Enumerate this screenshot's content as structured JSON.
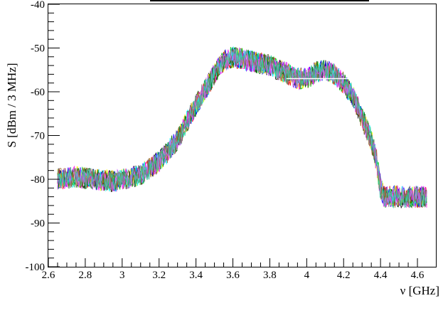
{
  "chart_data": {
    "type": "line",
    "title": "",
    "xlabel": "ν [GHz]",
    "ylabel": "S [dBm / 3 MHz]",
    "xlim": [
      2.6,
      4.7
    ],
    "ylim": [
      -100,
      -40
    ],
    "x_ticks": [
      2.6,
      2.8,
      3.0,
      3.2,
      3.4,
      3.6,
      3.8,
      4.0,
      4.2,
      4.4,
      4.6
    ],
    "x_tick_labels": [
      "2.6",
      "2.8",
      "3",
      "3.2",
      "3.4",
      "3.6",
      "3.8",
      "4",
      "4.2",
      "4.4",
      "4.6"
    ],
    "y_ticks": [
      -100,
      -90,
      -80,
      -70,
      -60,
      -50,
      -40
    ],
    "y_tick_labels": [
      "-100",
      "-90",
      "-80",
      "-70",
      "-60",
      "-50",
      "-40"
    ],
    "grid": false,
    "legend": "none",
    "n_traces": 12,
    "noise_amplitude_db": 2.5,
    "colors": [
      "#000000",
      "#ff0000",
      "#00cc00",
      "#0000ff",
      "#ffff00",
      "#ff00ff",
      "#00ffff",
      "#006600",
      "#808080",
      "#996633",
      "#cc66ff",
      "#33cc99"
    ],
    "envelope": {
      "x": [
        2.65,
        2.75,
        2.85,
        2.95,
        3.05,
        3.1,
        3.2,
        3.3,
        3.4,
        3.5,
        3.55,
        3.6,
        3.7,
        3.8,
        3.9,
        3.95,
        4.0,
        4.05,
        4.1,
        4.15,
        4.2,
        4.25,
        4.3,
        4.35,
        4.38,
        4.4,
        4.42,
        4.45,
        4.5,
        4.55,
        4.6,
        4.65
      ],
      "y": [
        -80,
        -79.5,
        -80,
        -80.5,
        -79.5,
        -79,
        -76,
        -71,
        -63,
        -56,
        -53,
        -52,
        -53,
        -54,
        -56,
        -57,
        -57,
        -55.5,
        -55,
        -56,
        -58,
        -61,
        -66,
        -71,
        -76,
        -82,
        -84,
        -84,
        -84,
        -84,
        -84,
        -84
      ]
    }
  }
}
